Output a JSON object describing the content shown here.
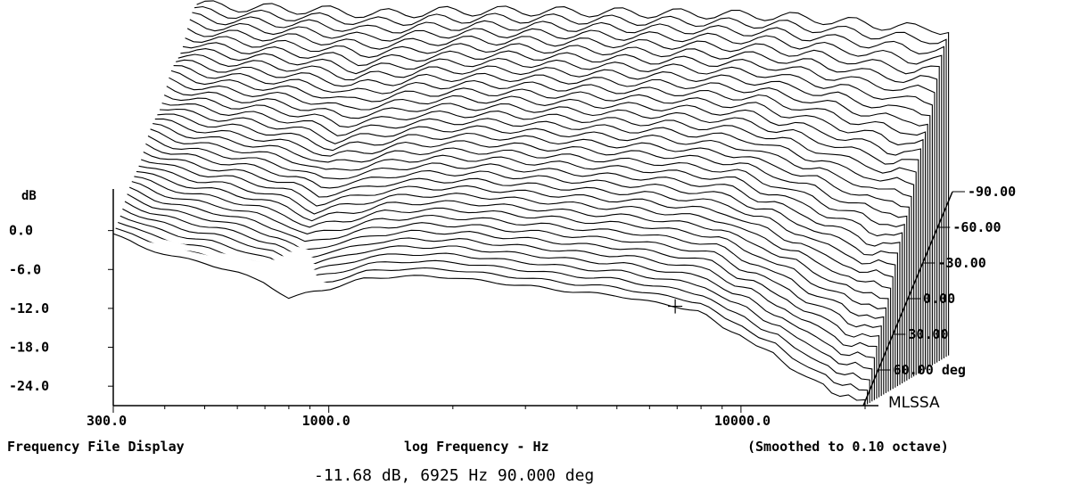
{
  "chart_data": {
    "type": "line",
    "subtype": "waterfall-3d",
    "ylabel": "dB",
    "xlabel": "log Frequency - Hz",
    "x_scale": "log",
    "xlim": [
      300,
      20000
    ],
    "ylim": [
      -27,
      6
    ],
    "x_ticks": [
      {
        "value": 300,
        "label": "300.0"
      },
      {
        "value": 1000,
        "label": "1000.0"
      },
      {
        "value": 10000,
        "label": "10000.0"
      }
    ],
    "y_ticks": [
      {
        "value": 0,
        "label": "0.0"
      },
      {
        "value": -6,
        "label": "-6.0"
      },
      {
        "value": -12,
        "label": "-12.0"
      },
      {
        "value": -18,
        "label": "-18.0"
      },
      {
        "value": -24,
        "label": "-24.0"
      }
    ],
    "z_ticks": [
      {
        "value": -90,
        "label": "-90.00"
      },
      {
        "value": -60,
        "label": "-60.00"
      },
      {
        "value": -30,
        "label": "-30.00"
      },
      {
        "value": 0,
        "label": "0.00"
      },
      {
        "value": 30,
        "label": "30.00"
      },
      {
        "value": 60,
        "label": "60.00 deg"
      }
    ],
    "z_range": [
      -90,
      90
    ],
    "z_step": 5,
    "front_trace": {
      "angle_deg": 90,
      "x": [
        300,
        350,
        420,
        500,
        600,
        700,
        800,
        900,
        1000,
        1200,
        1500,
        2000,
        2500,
        3000,
        4000,
        5000,
        6000,
        6925,
        8000,
        9000,
        10000,
        11000,
        12000,
        13000,
        14000,
        15000,
        16000,
        17000,
        18000,
        19000,
        20000
      ],
      "y": [
        -0.5,
        -2.5,
        -4,
        -5,
        -6.5,
        -8,
        -10.5,
        -9.5,
        -9,
        -7.5,
        -7,
        -7.2,
        -8,
        -8.5,
        -9.5,
        -10,
        -11,
        -11.68,
        -12.5,
        -15,
        -16,
        -18,
        -19,
        -21,
        -22,
        -23,
        -24,
        -26,
        -25,
        -26,
        -26
      ]
    },
    "legend": "none",
    "grid": false
  },
  "labels": {
    "brand": "MLSSA",
    "footer_left": "Frequency File Display",
    "footer_mid": "log Frequency - Hz",
    "footer_right": "(Smoothed to 0.10 octave)",
    "cursor_readout": "-11.68 dB, 6925 Hz 90.000 deg"
  },
  "colors": {
    "line": "#000000",
    "background": "#ffffff"
  }
}
